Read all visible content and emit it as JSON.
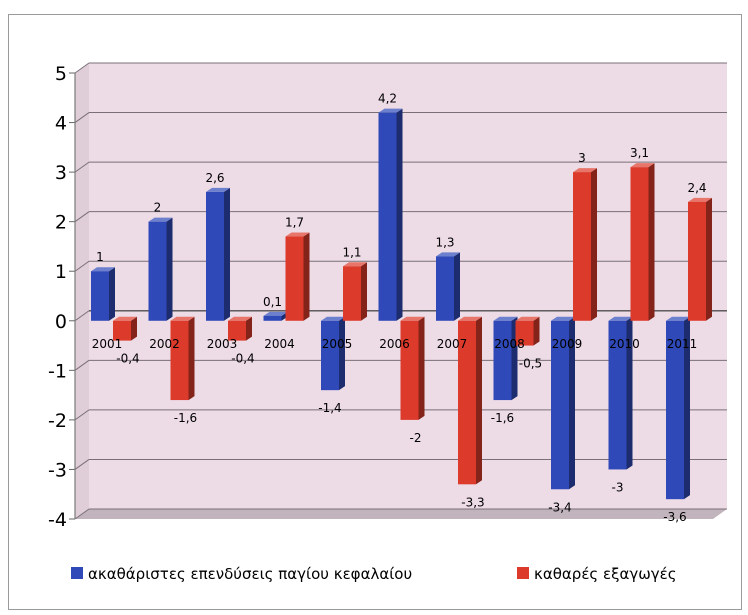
{
  "chart_data": {
    "type": "bar",
    "title": "",
    "xlabel": "",
    "ylabel": "",
    "categories": [
      "2001",
      "2002",
      "2003",
      "2004",
      "2005",
      "2006",
      "2007",
      "2008",
      "2009",
      "2010",
      "2011"
    ],
    "series": [
      {
        "name": "ακαθάριστες επενδύσεις παγίου κεφαλαίου",
        "color": "#2f49b8",
        "values": [
          1,
          2,
          2.6,
          0.1,
          -1.4,
          4.2,
          1.3,
          -1.6,
          -3.4,
          -3,
          -3.6
        ],
        "labels": [
          "1",
          "2",
          "2,6",
          "0,1",
          "-1,4",
          "4,2",
          "1,3",
          "-1,6",
          "-3,4",
          "-3",
          "-3,6"
        ]
      },
      {
        "name": "καθαρές εξαγωγές",
        "color": "#dc3a2a",
        "values": [
          -0.4,
          -1.6,
          -0.4,
          1.7,
          1.1,
          -2,
          -3.3,
          -0.5,
          3,
          3.1,
          2.4
        ],
        "labels": [
          "-0,4",
          "-1,6",
          "-0,4",
          "1,7",
          "1,1",
          "-2",
          "-3,3",
          "-0,5",
          "3",
          "3,1",
          "2,4"
        ]
      }
    ],
    "ylim": [
      -4,
      5
    ],
    "yticks": [
      5,
      4,
      3,
      2,
      1,
      0,
      -1,
      -2,
      -3,
      -4
    ],
    "grid": true,
    "legend": "bottom",
    "plot_background": "#eddbe6"
  }
}
